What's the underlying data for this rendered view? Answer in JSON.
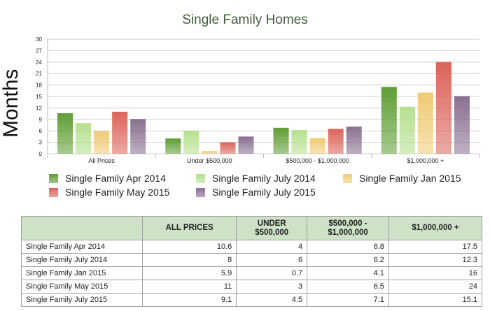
{
  "chart_data": {
    "type": "bar",
    "title": "Single Family Homes",
    "ylabel": "Months",
    "xlabel": "",
    "ylim": [
      0,
      30
    ],
    "yticks": [
      0,
      3,
      6,
      9,
      12,
      15,
      18,
      21,
      24,
      27,
      30
    ],
    "grid": true,
    "legend_position": "bottom",
    "categories": [
      "All Prices",
      "Under $500,000",
      "$500,000 - $1,000,000",
      "$1,000,000 +"
    ],
    "series": [
      {
        "name": "Single Family Apr 2014",
        "color": "#5f9e35",
        "values": [
          10.6,
          4,
          6.8,
          17.5
        ]
      },
      {
        "name": "Single Family July 2014",
        "color": "#b6e08e",
        "values": [
          8,
          6,
          6.2,
          12.3
        ]
      },
      {
        "name": "Single Family Jan 2015",
        "color": "#f0cb76",
        "values": [
          5.9,
          0.7,
          4.1,
          16
        ]
      },
      {
        "name": "Single Family May 2015",
        "color": "#dc645a",
        "values": [
          11,
          3,
          6.5,
          24
        ]
      },
      {
        "name": "Single Family July 2015",
        "color": "#897090",
        "values": [
          9.1,
          4.5,
          7.1,
          15.1
        ]
      }
    ]
  },
  "table": {
    "headers": [
      "",
      "ALL PRICES",
      "UNDER\n$500,000",
      "$500,000 -\n$1,000,000",
      "$1,000,000 +"
    ],
    "rows": [
      [
        "Single Family Apr 2014",
        "10.6",
        "4",
        "6.8",
        "17.5"
      ],
      [
        "Single Family July 2014",
        "8",
        "6",
        "6.2",
        "12.3"
      ],
      [
        "Single Family Jan 2015",
        "5.9",
        "0.7",
        "4.1",
        "16"
      ],
      [
        "Single Family May 2015",
        "11",
        "3",
        "6.5",
        "24"
      ],
      [
        "Single Family July 2015",
        "9.1",
        "4.5",
        "7.1",
        "15.1"
      ]
    ]
  }
}
